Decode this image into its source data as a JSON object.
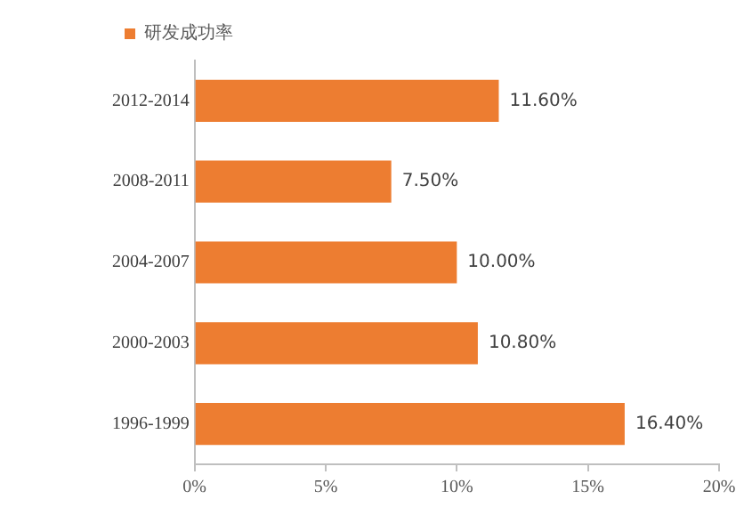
{
  "chart_data": {
    "type": "bar",
    "orientation": "horizontal",
    "categories": [
      "2012-2014",
      "2008-2011",
      "2004-2007",
      "2000-2003",
      "1996-1999"
    ],
    "series": [
      {
        "name": "研发成功率",
        "color": "#ed7d31",
        "values": [
          11.6,
          7.5,
          10.0,
          10.8,
          16.4
        ],
        "value_labels": [
          "11.60%",
          "7.50%",
          "10.00%",
          "10.80%",
          "16.40%"
        ]
      }
    ],
    "xlim": [
      0,
      20
    ],
    "xticks": [
      {
        "value": 0,
        "label": "0%"
      },
      {
        "value": 5,
        "label": "5%"
      },
      {
        "value": 10,
        "label": "10%"
      },
      {
        "value": 15,
        "label": "15%"
      },
      {
        "value": 20,
        "label": "20%"
      }
    ],
    "grid": false,
    "legend": "top left"
  }
}
